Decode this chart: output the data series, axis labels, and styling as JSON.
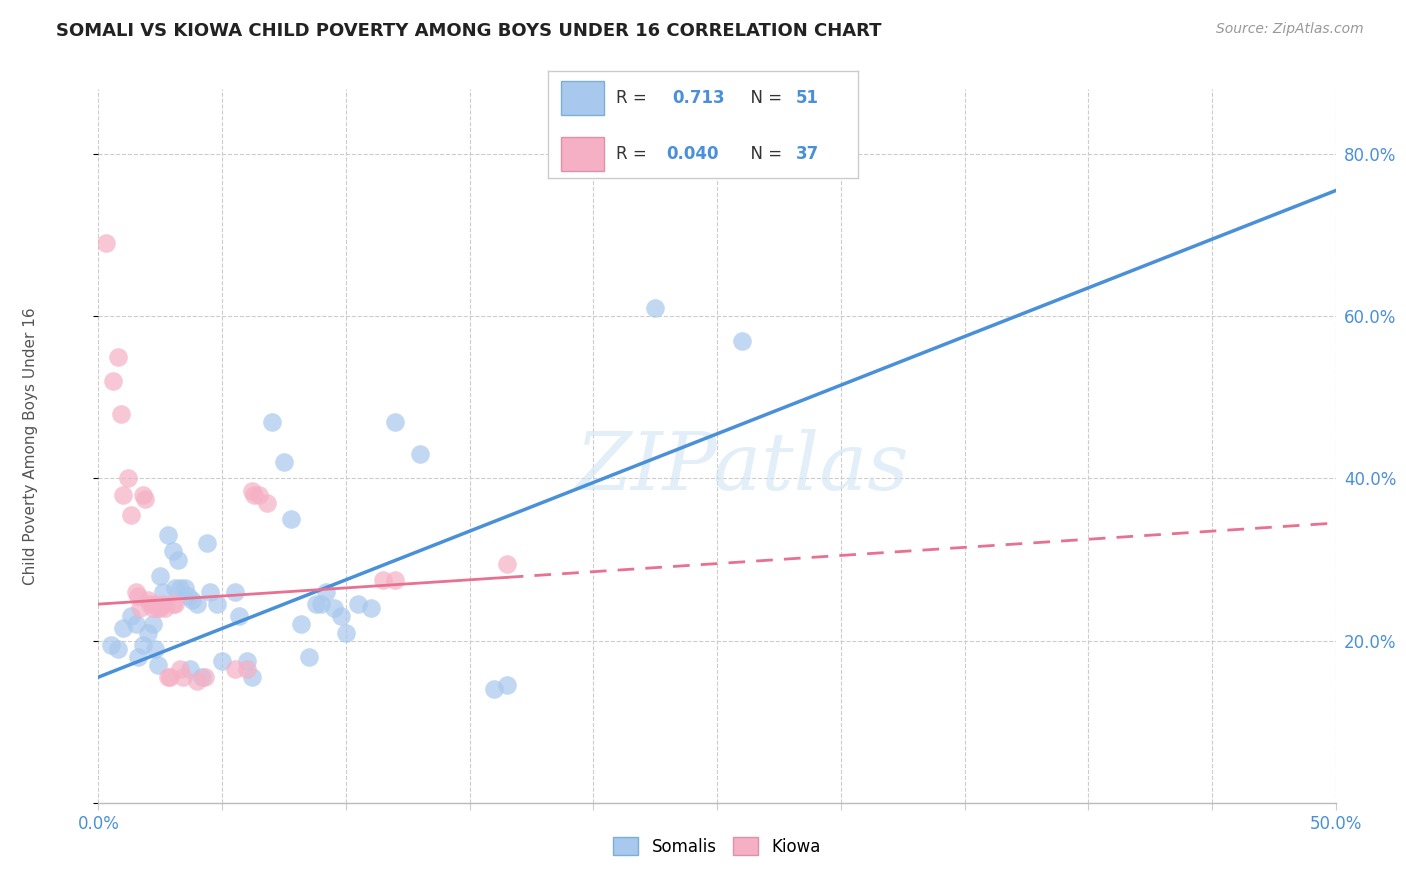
{
  "title": "SOMALI VS KIOWA CHILD POVERTY AMONG BOYS UNDER 16 CORRELATION CHART",
  "source": "Source: ZipAtlas.com",
  "ylabel": "Child Poverty Among Boys Under 16",
  "xlim": [
    0.0,
    0.5
  ],
  "ylim": [
    0.0,
    0.88
  ],
  "xticks": [
    0.0,
    0.05,
    0.1,
    0.15,
    0.2,
    0.25,
    0.3,
    0.35,
    0.4,
    0.45,
    0.5
  ],
  "xtick_labels_show": [
    0.0,
    0.5
  ],
  "yticks": [
    0.0,
    0.2,
    0.4,
    0.6,
    0.8
  ],
  "ytick_labels": [
    "",
    "20.0%",
    "40.0%",
    "60.0%",
    "80.0%"
  ],
  "watermark": "ZIPatlas",
  "somali_color": "#a8c8ed",
  "kiowa_color": "#f5b0c5",
  "somali_line_color": "#4a90d9",
  "kiowa_line_color": "#e87090",
  "somali_scatter": [
    [
      0.005,
      0.195
    ],
    [
      0.008,
      0.19
    ],
    [
      0.01,
      0.215
    ],
    [
      0.013,
      0.23
    ],
    [
      0.015,
      0.22
    ],
    [
      0.016,
      0.18
    ],
    [
      0.018,
      0.195
    ],
    [
      0.02,
      0.21
    ],
    [
      0.022,
      0.22
    ],
    [
      0.023,
      0.19
    ],
    [
      0.024,
      0.17
    ],
    [
      0.025,
      0.28
    ],
    [
      0.026,
      0.26
    ],
    [
      0.028,
      0.33
    ],
    [
      0.03,
      0.31
    ],
    [
      0.031,
      0.265
    ],
    [
      0.032,
      0.3
    ],
    [
      0.033,
      0.265
    ],
    [
      0.035,
      0.265
    ],
    [
      0.036,
      0.255
    ],
    [
      0.037,
      0.165
    ],
    [
      0.038,
      0.25
    ],
    [
      0.04,
      0.245
    ],
    [
      0.042,
      0.155
    ],
    [
      0.044,
      0.32
    ],
    [
      0.045,
      0.26
    ],
    [
      0.048,
      0.245
    ],
    [
      0.05,
      0.175
    ],
    [
      0.055,
      0.26
    ],
    [
      0.057,
      0.23
    ],
    [
      0.06,
      0.175
    ],
    [
      0.062,
      0.155
    ],
    [
      0.07,
      0.47
    ],
    [
      0.075,
      0.42
    ],
    [
      0.078,
      0.35
    ],
    [
      0.082,
      0.22
    ],
    [
      0.085,
      0.18
    ],
    [
      0.088,
      0.245
    ],
    [
      0.09,
      0.245
    ],
    [
      0.092,
      0.26
    ],
    [
      0.095,
      0.24
    ],
    [
      0.098,
      0.23
    ],
    [
      0.1,
      0.21
    ],
    [
      0.105,
      0.245
    ],
    [
      0.11,
      0.24
    ],
    [
      0.12,
      0.47
    ],
    [
      0.13,
      0.43
    ],
    [
      0.16,
      0.14
    ],
    [
      0.165,
      0.145
    ],
    [
      0.225,
      0.61
    ],
    [
      0.26,
      0.57
    ]
  ],
  "kiowa_scatter": [
    [
      0.003,
      0.69
    ],
    [
      0.006,
      0.52
    ],
    [
      0.008,
      0.55
    ],
    [
      0.009,
      0.48
    ],
    [
      0.01,
      0.38
    ],
    [
      0.012,
      0.4
    ],
    [
      0.013,
      0.355
    ],
    [
      0.015,
      0.26
    ],
    [
      0.016,
      0.255
    ],
    [
      0.017,
      0.24
    ],
    [
      0.018,
      0.38
    ],
    [
      0.019,
      0.375
    ],
    [
      0.02,
      0.25
    ],
    [
      0.021,
      0.245
    ],
    [
      0.022,
      0.24
    ],
    [
      0.023,
      0.245
    ],
    [
      0.024,
      0.24
    ],
    [
      0.025,
      0.24
    ],
    [
      0.026,
      0.245
    ],
    [
      0.027,
      0.24
    ],
    [
      0.028,
      0.155
    ],
    [
      0.029,
      0.155
    ],
    [
      0.03,
      0.245
    ],
    [
      0.031,
      0.245
    ],
    [
      0.033,
      0.165
    ],
    [
      0.034,
      0.155
    ],
    [
      0.04,
      0.15
    ],
    [
      0.043,
      0.155
    ],
    [
      0.055,
      0.165
    ],
    [
      0.06,
      0.165
    ],
    [
      0.062,
      0.385
    ],
    [
      0.063,
      0.38
    ],
    [
      0.065,
      0.38
    ],
    [
      0.068,
      0.37
    ],
    [
      0.115,
      0.275
    ],
    [
      0.12,
      0.275
    ],
    [
      0.165,
      0.295
    ]
  ],
  "somali_trendline": [
    [
      0.0,
      0.155
    ],
    [
      0.5,
      0.755
    ]
  ],
  "kiowa_trendline": [
    [
      0.0,
      0.245
    ],
    [
      0.5,
      0.345
    ]
  ],
  "kiowa_trendline_ext": [
    [
      0.165,
      0.295
    ],
    [
      0.5,
      0.345
    ]
  ],
  "background_color": "#ffffff",
  "grid_color": "#cccccc"
}
